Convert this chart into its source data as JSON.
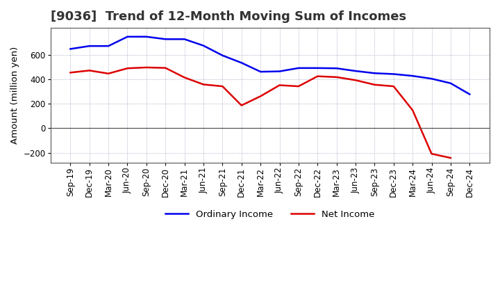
{
  "title": "[9036]  Trend of 12-Month Moving Sum of Incomes",
  "ylabel": "Amount (million yen)",
  "ylim": [
    -280,
    820
  ],
  "yticks": [
    -200,
    0,
    200,
    400,
    600
  ],
  "background_color": "#ffffff",
  "grid_color": "#9999bb",
  "labels": [
    "Sep-19",
    "Dec-19",
    "Mar-20",
    "Jun-20",
    "Sep-20",
    "Dec-20",
    "Mar-21",
    "Jun-21",
    "Sep-21",
    "Dec-21",
    "Mar-22",
    "Jun-22",
    "Sep-22",
    "Dec-22",
    "Mar-23",
    "Jun-23",
    "Sep-23",
    "Dec-23",
    "Mar-24",
    "Jun-24",
    "Sep-24",
    "Dec-24"
  ],
  "ordinary_income": [
    648,
    672,
    672,
    748,
    748,
    728,
    728,
    675,
    595,
    535,
    462,
    465,
    492,
    492,
    490,
    468,
    450,
    443,
    428,
    405,
    368,
    278
  ],
  "net_income": [
    455,
    472,
    447,
    490,
    497,
    493,
    415,
    358,
    343,
    187,
    262,
    352,
    343,
    425,
    418,
    393,
    356,
    343,
    148,
    -208,
    -242,
    null
  ],
  "ordinary_income_color": "#0000ee",
  "net_income_color": "#dd0000",
  "title_fontsize": 13,
  "tick_fontsize": 8.5,
  "label_fontsize": 9.5
}
